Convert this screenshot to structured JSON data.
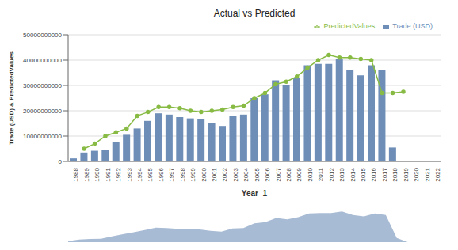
{
  "chart_data": [
    {
      "type": "bar",
      "title": "Actual vs Predicted",
      "xlabel": "Year_1",
      "ylabel": "Trade (USD) & PredictedValues",
      "categories": [
        "1988",
        "1989",
        "1990",
        "1991",
        "1992",
        "1993",
        "1994",
        "1995",
        "1996",
        "1997",
        "1998",
        "1999",
        "2000",
        "2001",
        "2002",
        "2003",
        "2004",
        "2005",
        "2006",
        "2007",
        "2008",
        "2009",
        "2010",
        "2011",
        "2012",
        "2013",
        "2014",
        "2015",
        "2016",
        "2017",
        "2018",
        "2019",
        "2020",
        "2021",
        "2022"
      ],
      "series": [
        {
          "name": "Trade (USD)",
          "type": "bar",
          "color": "#6e8eb8",
          "values": [
            1200000000,
            3500000000,
            4200000000,
            4500000000,
            7500000000,
            10500000000,
            13000000000,
            16000000000,
            19000000000,
            18500000000,
            17500000000,
            17000000000,
            16800000000,
            15000000000,
            14000000000,
            18000000000,
            18500000000,
            25000000000,
            26500000000,
            32000000000,
            30000000000,
            33000000000,
            38000000000,
            38500000000,
            38500000000,
            40500000000,
            36000000000,
            34000000000,
            38000000000,
            36000000000,
            5500000000,
            0,
            0,
            0,
            0
          ]
        },
        {
          "name": "PredictedValues",
          "type": "line",
          "color": "#88bb44",
          "marker": "circle",
          "values": [
            null,
            5000000000,
            7000000000,
            10000000000,
            11500000000,
            13000000000,
            18000000000,
            19500000000,
            21500000000,
            21500000000,
            21000000000,
            20000000000,
            19500000000,
            20000000000,
            20500000000,
            21500000000,
            22000000000,
            25000000000,
            27000000000,
            30500000000,
            31500000000,
            33500000000,
            37000000000,
            40000000000,
            42000000000,
            41000000000,
            41000000000,
            40500000000,
            40000000000,
            27000000000,
            27000000000,
            27500000000,
            null,
            null,
            null
          ]
        }
      ],
      "ylim": [
        0,
        50000000000
      ],
      "yticks": [
        0,
        10000000000,
        20000000000,
        30000000000,
        40000000000,
        50000000000
      ],
      "grid": true,
      "legend": "upper right"
    },
    {
      "type": "area",
      "categories": [
        "1988",
        "1989",
        "1990",
        "1991",
        "1992",
        "1993",
        "1994",
        "1995",
        "1996",
        "1997",
        "1998",
        "1999",
        "2000",
        "2001",
        "2002",
        "2003",
        "2004",
        "2005",
        "2006",
        "2007",
        "2008",
        "2009",
        "2010",
        "2011",
        "2012",
        "2013",
        "2014",
        "2015",
        "2016",
        "2017",
        "2018",
        "2019",
        "2020",
        "2021",
        "2022"
      ],
      "values": [
        1200000000,
        3500000000,
        4200000000,
        4500000000,
        7500000000,
        10500000000,
        13000000000,
        16000000000,
        19000000000,
        18500000000,
        17500000000,
        17000000000,
        16800000000,
        15000000000,
        14000000000,
        18000000000,
        18500000000,
        25000000000,
        26500000000,
        32000000000,
        30000000000,
        33000000000,
        38000000000,
        38500000000,
        38500000000,
        40500000000,
        36000000000,
        34000000000,
        38000000000,
        36000000000,
        5500000000,
        0,
        0,
        0,
        0
      ],
      "color": "#6e8eb8",
      "ylim": [
        0,
        60750000000
      ],
      "tick_labels": false
    }
  ]
}
